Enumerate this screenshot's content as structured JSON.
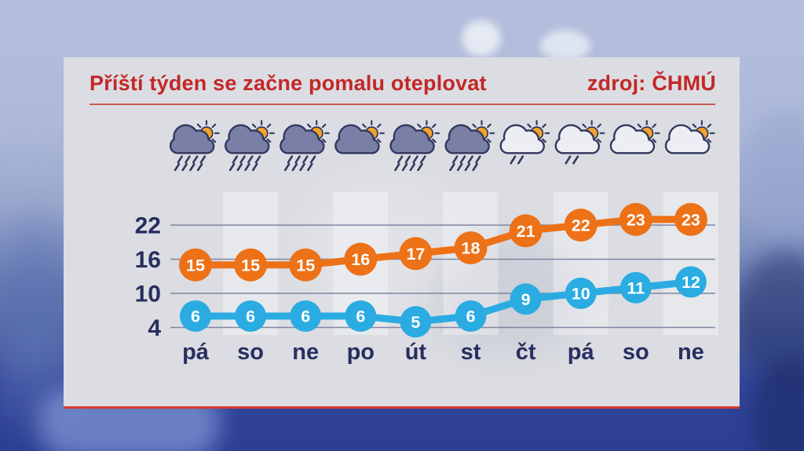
{
  "header": {
    "title": "Příští týden se začne pomalu oteplovat",
    "source": "zdroj: ČHMÚ"
  },
  "chart_data": {
    "type": "line",
    "categories": [
      "pá",
      "so",
      "ne",
      "po",
      "út",
      "st",
      "čt",
      "pá",
      "so",
      "ne"
    ],
    "series": [
      {
        "name": "max",
        "color": "#ed7117",
        "values": [
          15,
          15,
          15,
          16,
          17,
          18,
          21,
          22,
          23,
          23
        ]
      },
      {
        "name": "min",
        "color": "#2aace2",
        "values": [
          6,
          6,
          6,
          6,
          5,
          6,
          9,
          10,
          11,
          12
        ]
      }
    ],
    "yticks": [
      22,
      16,
      10,
      4
    ],
    "ylim": [
      2,
      26
    ],
    "grid": true,
    "legend": "none",
    "icons": [
      "rain-sun-dark",
      "rain-sun-dark",
      "rain-sun-dark",
      "cloud-sun-dark",
      "rain-sun-dark",
      "rain-sun-dark",
      "rain-sun-light",
      "rain-sun-light",
      "cloud-sun-light",
      "cloud-sun-light"
    ]
  },
  "colors": {
    "title_red": "#c32727",
    "divider_red": "#cd5b53",
    "card_bottom_red": "#d63c2e",
    "axis_text": "#272e5f",
    "gridline": "#7f86a0",
    "value_text": "#ffffff",
    "cloud_dark": "#7a7fa6",
    "cloud_light": "#edeef3",
    "cloud_outline": "#323860",
    "sun": "#f2a32a"
  }
}
